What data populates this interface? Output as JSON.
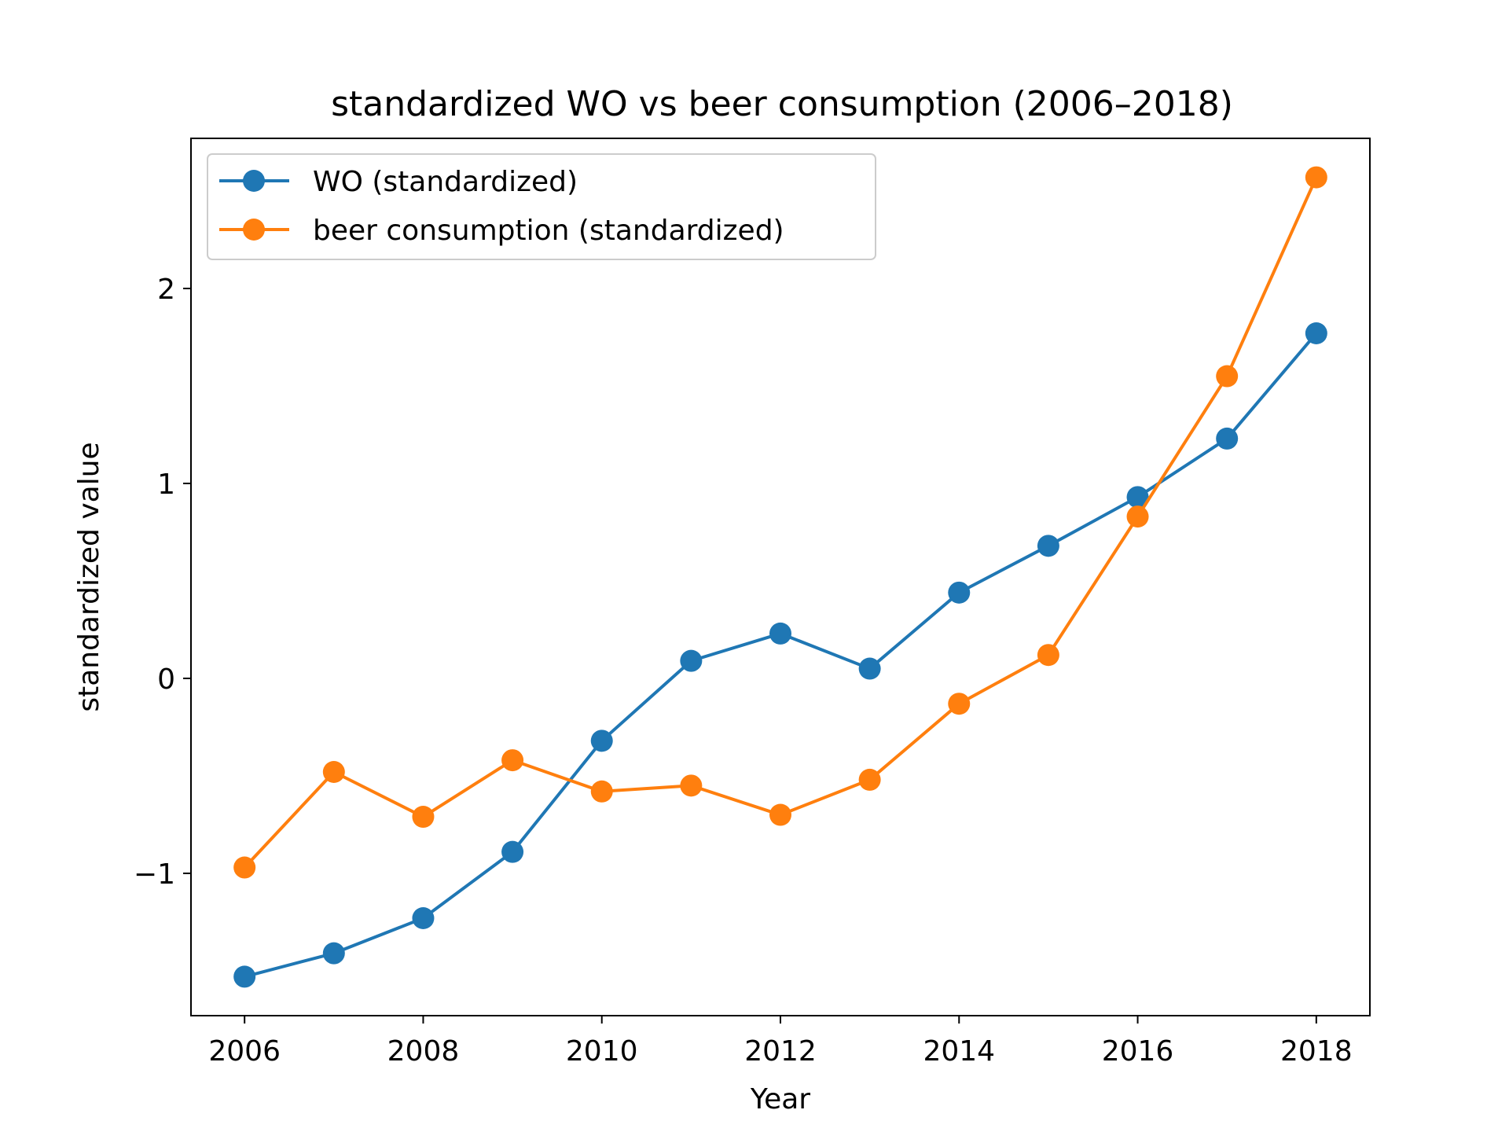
{
  "chart_data": {
    "type": "line",
    "title": "standardized WO vs beer consumption (2006–2018)",
    "xlabel": "Year",
    "ylabel": "standardized value",
    "x": [
      2006,
      2007,
      2008,
      2009,
      2010,
      2011,
      2012,
      2013,
      2014,
      2015,
      2016,
      2017,
      2018
    ],
    "xlim": [
      2005.4,
      2018.6
    ],
    "ylim": [
      -1.73,
      2.77
    ],
    "x_ticks": [
      2006,
      2008,
      2010,
      2012,
      2014,
      2016,
      2018
    ],
    "x_tick_labels": [
      "2006",
      "2008",
      "2010",
      "2012",
      "2014",
      "2016",
      "2018"
    ],
    "y_ticks": [
      -1,
      0,
      1,
      2
    ],
    "y_tick_labels": [
      "−1",
      "0",
      "1",
      "2"
    ],
    "grid": false,
    "legend_position": "upper-left",
    "series": [
      {
        "name": "WO (standardized)",
        "color": "#1f77b4",
        "values": [
          -1.53,
          -1.41,
          -1.23,
          -0.89,
          -0.32,
          0.09,
          0.23,
          0.05,
          0.44,
          0.68,
          0.93,
          1.23,
          1.77
        ]
      },
      {
        "name": "beer consumption (standardized)",
        "color": "#ff7f0e",
        "values": [
          -0.97,
          -0.48,
          -0.71,
          -0.42,
          -0.58,
          -0.55,
          -0.7,
          -0.52,
          -0.13,
          0.12,
          0.83,
          1.55,
          2.57
        ]
      }
    ]
  }
}
